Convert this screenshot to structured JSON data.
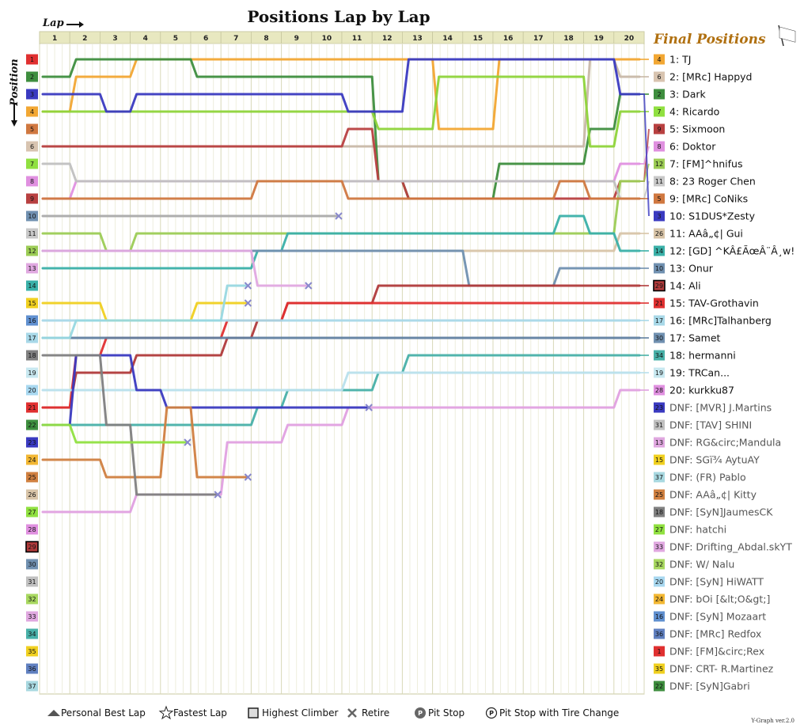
{
  "title": "Positions Lap by Lap",
  "x_axis_label": "Lap",
  "y_axis_label": "Position",
  "final_title": "Final Positions",
  "version": "Y-Graph ver.2.0",
  "legend": [
    {
      "label": "Personal Best Lap",
      "icon": "triangle-icon"
    },
    {
      "label": "Fastest Lap",
      "icon": "star-icon"
    },
    {
      "label": "Highest Climber",
      "icon": "square-icon"
    },
    {
      "label": "Retire",
      "icon": "cross-icon"
    },
    {
      "label": "Pit Stop",
      "icon": "pit-filled-icon"
    },
    {
      "label": "Pit Stop with Tire Change",
      "icon": "pit-outline-icon"
    }
  ],
  "chart_data": {
    "type": "line",
    "laps": [
      1,
      2,
      3,
      4,
      5,
      6,
      7,
      8,
      9,
      10,
      11,
      12,
      13,
      14,
      15,
      16,
      17,
      18,
      19,
      20
    ],
    "positions": [
      1,
      2,
      3,
      4,
      5,
      6,
      7,
      8,
      9,
      10,
      11,
      12,
      13,
      14,
      15,
      16,
      17,
      18,
      19,
      20,
      21,
      22,
      23,
      24,
      25,
      26,
      27,
      28,
      29,
      30,
      31,
      32,
      33,
      34,
      35,
      36,
      37
    ],
    "drivers": [
      {
        "num": 4,
        "name": "TJ",
        "color": "#f2a733",
        "final": 1,
        "path": [
          4,
          2,
          2,
          1,
          1,
          1,
          1,
          1,
          1,
          1,
          1,
          1,
          1,
          5,
          5,
          1,
          1,
          1,
          1,
          1
        ]
      },
      {
        "num": 6,
        "name": "[MRc] Happy",
        "color": "#c8b8a8",
        "final": 2,
        "path": [
          6,
          6,
          6,
          6,
          6,
          6,
          6,
          6,
          6,
          6,
          6,
          6,
          6,
          6,
          6,
          6,
          6,
          6,
          1,
          2
        ]
      },
      {
        "num": 2,
        "name": "Dark",
        "color": "#3e8e3e",
        "final": 3,
        "path": [
          2,
          1,
          1,
          1,
          1,
          2,
          2,
          2,
          2,
          2,
          2,
          8,
          9,
          9,
          9,
          7,
          7,
          7,
          5,
          3
        ]
      },
      {
        "num": 7,
        "name": "Ricardo",
        "color": "#8ed43a",
        "final": 4,
        "path": [
          4,
          4,
          4,
          4,
          4,
          4,
          4,
          4,
          4,
          4,
          4,
          5,
          5,
          2,
          2,
          2,
          2,
          2,
          6,
          4
        ]
      },
      {
        "num": 9,
        "name": "Sixmoon",
        "color": "#b84040",
        "final": 5,
        "path": [
          6,
          6,
          6,
          6,
          6,
          6,
          6,
          6,
          6,
          6,
          5,
          8,
          9,
          9,
          9,
          9,
          9,
          9,
          9,
          8
        ]
      },
      {
        "num": 8,
        "name": "Doktor",
        "color": "#e090e0",
        "final": 6,
        "path": [
          9,
          8,
          8,
          8,
          8,
          8,
          8,
          8,
          8,
          8,
          8,
          8,
          8,
          8,
          8,
          8,
          8,
          8,
          8,
          7
        ]
      },
      {
        "num": 12,
        "name": "[FM]^hnifus",
        "color": "#9ccc55",
        "final": 7,
        "path": [
          11,
          11,
          12,
          11,
          11,
          11,
          11,
          11,
          11,
          11,
          11,
          11,
          11,
          11,
          11,
          11,
          11,
          11,
          11,
          8
        ]
      },
      {
        "num": 11,
        "name": "23 Roger Chen",
        "color": "#c0c0c0",
        "final": 8,
        "path": [
          7,
          8,
          8,
          8,
          8,
          8,
          8,
          8,
          8,
          8,
          8,
          8,
          8,
          8,
          8,
          8,
          8,
          8,
          8,
          9
        ]
      },
      {
        "num": 5,
        "name": "[MRc] CoNiks",
        "color": "#d07840",
        "final": 9,
        "path": [
          9,
          9,
          9,
          9,
          9,
          9,
          9,
          8,
          8,
          8,
          9,
          9,
          9,
          9,
          9,
          9,
          9,
          8,
          9,
          9
        ]
      },
      {
        "num": 3,
        "name": "S1DUS*Zesty",
        "color": "#3a3ac0",
        "final": 10,
        "path": [
          3,
          3,
          4,
          3,
          3,
          3,
          3,
          3,
          3,
          3,
          4,
          4,
          1,
          1,
          1,
          1,
          1,
          1,
          1,
          3
        ]
      },
      {
        "num": 26,
        "name": "AAA Gui",
        "color": "#d8c4a8",
        "final": 11,
        "path": [
          12,
          12,
          12,
          12,
          12,
          12,
          12,
          12,
          12,
          12,
          12,
          12,
          12,
          12,
          12,
          12,
          12,
          12,
          12,
          11
        ]
      },
      {
        "num": 14,
        "name": "[GD] ^KAE",
        "color": "#3ab0a8",
        "final": 12,
        "path": [
          13,
          13,
          13,
          13,
          13,
          13,
          13,
          12,
          11,
          11,
          11,
          11,
          11,
          11,
          11,
          11,
          11,
          10,
          11,
          12
        ]
      },
      {
        "num": 10,
        "name": "Onur",
        "color": "#7090b0",
        "final": 13,
        "path": [
          12,
          12,
          12,
          12,
          12,
          12,
          12,
          12,
          12,
          12,
          12,
          12,
          12,
          12,
          14,
          14,
          14,
          13,
          13,
          13
        ]
      },
      {
        "num": 29,
        "name": "Ali",
        "color": "#b03a3a",
        "final": 14,
        "path": [
          21,
          19,
          19,
          18,
          18,
          18,
          17,
          16,
          15,
          15,
          15,
          14,
          14,
          14,
          14,
          14,
          14,
          14,
          14,
          14
        ]
      },
      {
        "num": 21,
        "name": "TAV-Grothavin",
        "color": "#e03030",
        "final": 15,
        "path": [
          21,
          18,
          17,
          17,
          17,
          17,
          16,
          16,
          15,
          15,
          15,
          15,
          15,
          15,
          15,
          15,
          15,
          15,
          15,
          15
        ]
      },
      {
        "num": 17,
        "name": "[MRc]Talhanberg",
        "color": "#a8d8e8",
        "final": 16,
        "path": [
          16,
          16,
          16,
          16,
          16,
          16,
          16,
          16,
          16,
          16,
          16,
          16,
          16,
          16,
          16,
          16,
          16,
          16,
          16,
          16
        ]
      },
      {
        "num": 30,
        "name": "Samet",
        "color": "#6080a0",
        "final": 17,
        "path": [
          17,
          17,
          17,
          17,
          17,
          17,
          17,
          17,
          17,
          17,
          17,
          17,
          17,
          17,
          17,
          17,
          17,
          17,
          17,
          17
        ]
      },
      {
        "num": 34,
        "name": "hermanni",
        "color": "#48b0a8",
        "final": 18,
        "path": [
          22,
          22,
          22,
          22,
          22,
          22,
          22,
          21,
          20,
          20,
          20,
          19,
          18,
          18,
          18,
          18,
          18,
          18,
          18,
          18
        ]
      },
      {
        "num": 19,
        "name": "TRCan...",
        "color": "#b8e0ec",
        "final": 19,
        "path": [
          20,
          20,
          20,
          20,
          20,
          20,
          20,
          20,
          20,
          20,
          19,
          19,
          19,
          19,
          19,
          19,
          19,
          19,
          19,
          19
        ]
      },
      {
        "num": 28,
        "name": "kurkku87",
        "color": "#e0a0e0",
        "final": 20,
        "path": [
          27,
          27,
          27,
          26,
          26,
          26,
          23,
          23,
          22,
          22,
          21,
          21,
          21,
          21,
          21,
          21,
          21,
          21,
          21,
          20
        ]
      },
      {
        "num": 23,
        "name": "DNF: [MVR] J.Martins",
        "color": "#3a3ac0",
        "final": null,
        "path": [
          22,
          18,
          18,
          20,
          21,
          21,
          21,
          21,
          21,
          21,
          21
        ]
      },
      {
        "num": 31,
        "name": "DNF: [TAV] SHINI",
        "color": "#aaaaaa",
        "final": null,
        "path": [
          10,
          10,
          10,
          10,
          10,
          10,
          10,
          10,
          10,
          10
        ]
      },
      {
        "num": 13,
        "name": "DNF: RG Mandula",
        "color": "#e0a8e0",
        "final": null,
        "path": [
          12,
          12,
          12,
          12,
          12,
          12,
          12,
          14,
          14
        ]
      },
      {
        "num": 15,
        "name": "DNF: SG AytuAY",
        "color": "#f0d020",
        "final": null,
        "path": [
          15,
          15,
          16,
          16,
          16,
          15,
          15
        ]
      },
      {
        "num": 37,
        "name": "DNF: (FR) Pablo",
        "color": "#98d8e0",
        "final": null,
        "path": [
          17,
          16,
          16,
          16,
          16,
          16,
          14
        ]
      },
      {
        "num": 25,
        "name": "DNF: AAA Kitty",
        "color": "#d08040",
        "final": null,
        "path": [
          24,
          24,
          25,
          25,
          21,
          25,
          25
        ]
      },
      {
        "num": 18,
        "name": "DNF: [SyN]JaumesCK",
        "color": "#808080",
        "final": null,
        "path": [
          18,
          18,
          22,
          26,
          26,
          26
        ]
      },
      {
        "num": 27,
        "name": "DNF: hatchi",
        "color": "#90e040",
        "final": null,
        "path": [
          22,
          23,
          23,
          23,
          23
        ]
      }
    ],
    "final_list_labels": [
      {
        "num": 4,
        "text": "1: TJ"
      },
      {
        "num": 6,
        "text": "2: [MRc] Happyd"
      },
      {
        "num": 2,
        "text": "3: Dark"
      },
      {
        "num": 7,
        "text": "4: Ricardo"
      },
      {
        "num": 9,
        "text": "5: Sixmoon"
      },
      {
        "num": 8,
        "text": "6: Doktor"
      },
      {
        "num": 12,
        "text": "7: [FM]^hnifus"
      },
      {
        "num": 11,
        "text": "8: 23 Roger Chen"
      },
      {
        "num": 5,
        "text": "9: [MRc] CoNiks"
      },
      {
        "num": 3,
        "text": "10: S1DUS*Zesty"
      },
      {
        "num": 26,
        "text": "11: AAâ„¢| Gui"
      },
      {
        "num": 14,
        "text": "12: [GD] ^KÂ£ÃœÂ¨Â¸w!"
      },
      {
        "num": 10,
        "text": "13: Onur"
      },
      {
        "num": 29,
        "text": "14: Ali"
      },
      {
        "num": 21,
        "text": "15: TAV-Grothavin"
      },
      {
        "num": 17,
        "text": "16: [MRc]Talhanberg"
      },
      {
        "num": 30,
        "text": "17: Samet"
      },
      {
        "num": 34,
        "text": "18: hermanni"
      },
      {
        "num": 19,
        "text": "19: TRCan..."
      },
      {
        "num": 28,
        "text": "20: kurkku87"
      },
      {
        "num": 23,
        "text": "DNF: [MVR] J.Martins"
      },
      {
        "num": 31,
        "text": "DNF: [TAV] SHINI"
      },
      {
        "num": 13,
        "text": "DNF: RG&circ;Mandula"
      },
      {
        "num": 15,
        "text": "DNF: SGï¾ AytuAY"
      },
      {
        "num": 37,
        "text": "DNF: (FR) Pablo"
      },
      {
        "num": 25,
        "text": "DNF: AAâ„¢| Kitty"
      },
      {
        "num": 18,
        "text": "DNF: [SyN]JaumesCK"
      },
      {
        "num": 27,
        "text": "DNF: hatchi"
      },
      {
        "num": 33,
        "text": "DNF: Drifting_Abdal.skYT"
      },
      {
        "num": 32,
        "text": "DNF: W/ Nalu"
      },
      {
        "num": 20,
        "text": "DNF: [SyN] HiWATT"
      },
      {
        "num": 24,
        "text": "DNF: bOi [&lt;O&gt;]"
      },
      {
        "num": 16,
        "text": "DNF: [SyN] Mozaart"
      },
      {
        "num": 36,
        "text": "DNF: [MRc] Redfox"
      },
      {
        "num": 1,
        "text": "DNF: [FM]&circ;Rex"
      },
      {
        "num": 35,
        "text": "DNF: CRT- R.Martinez"
      },
      {
        "num": 22,
        "text": "DNF: [SyN]Gabri"
      }
    ],
    "number_colors": {
      "1": "#e03030",
      "2": "#3e8e3e",
      "3": "#3a3ac0",
      "4": "#f2a733",
      "5": "#d07840",
      "6": "#d8c4b0",
      "7": "#90e040",
      "8": "#e090e0",
      "9": "#b84040",
      "10": "#7090b0",
      "11": "#c8c8c8",
      "12": "#9ccc55",
      "13": "#e0a8e0",
      "14": "#3ab0a8",
      "15": "#f0d020",
      "16": "#6090d0",
      "17": "#a8d8e8",
      "18": "#808080",
      "19": "#c8e8f0",
      "20": "#a8d8f0",
      "21": "#e03030",
      "22": "#3e8e3e",
      "23": "#3a3ac0",
      "24": "#f2b733",
      "25": "#d08040",
      "26": "#d8c4a8",
      "27": "#90e040",
      "28": "#e090e0",
      "29": "#b03a3a",
      "30": "#7090b0",
      "31": "#c0c0c0",
      "32": "#a8d860",
      "33": "#e0a8e0",
      "34": "#48b0a8",
      "35": "#f0d020",
      "36": "#6080c0",
      "37": "#a8d8e0"
    },
    "highest_climber_num": 29
  }
}
